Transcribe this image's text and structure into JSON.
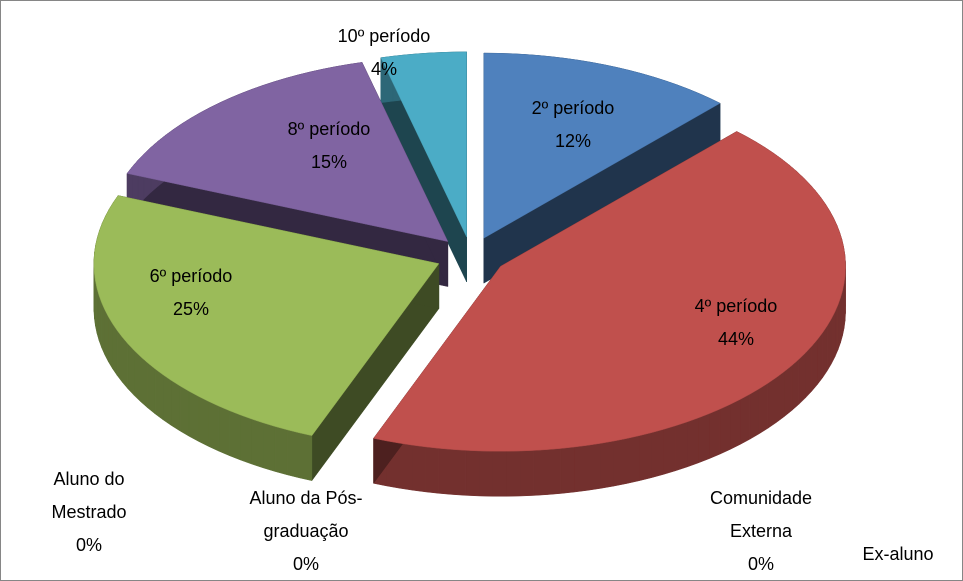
{
  "chart_data": {
    "type": "pie",
    "categories": [
      "2º período",
      "4º período",
      "Ex-aluno",
      "Comunidade Externa",
      "Aluno da Pós-graduação",
      "Aluno do Mestrado",
      "6º período",
      "8º período",
      "10º período"
    ],
    "values": [
      12,
      44,
      0,
      0,
      0,
      0,
      25,
      15,
      4
    ],
    "value_labels": [
      "12%",
      "44%",
      "0%",
      "0%",
      "0%",
      "0%",
      "25%",
      "15%",
      "4%"
    ],
    "colors": [
      "#4f81bd",
      "#c0504d",
      "#f79646",
      "#2c4d75",
      "#772c2a",
      "#5f7530",
      "#9bbb59",
      "#8064a2",
      "#4bacc6"
    ]
  }
}
